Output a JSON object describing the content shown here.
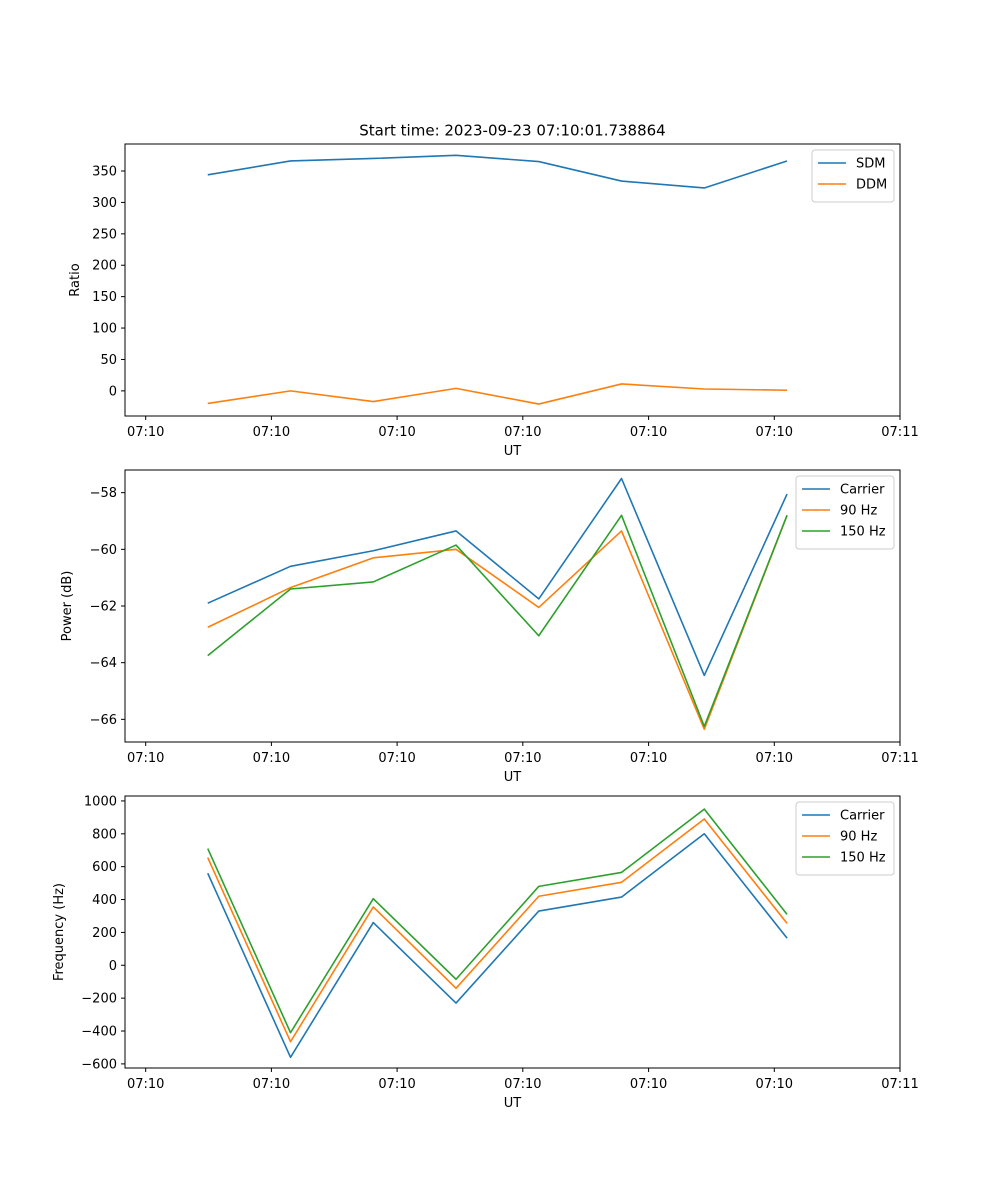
{
  "figure": {
    "title": "Start time: 2023-09-23 07:10:01.738864",
    "colors": {
      "blue": "#1f77b4",
      "orange": "#ff7f0e",
      "green": "#2ca02c"
    }
  },
  "chart_data": [
    {
      "type": "line",
      "title": "Start time: 2023-09-23 07:10:01.738864",
      "xlabel": "UT",
      "ylabel": "Ratio",
      "x": [
        1,
        2,
        3,
        4,
        5,
        6,
        7,
        8
      ],
      "x_ticks": [
        0.25,
        1.769,
        3.288,
        4.807,
        6.327,
        7.846,
        9.365
      ],
      "x_tick_labels": [
        "07:10",
        "07:10",
        "07:10",
        "07:10",
        "07:10",
        "07:10",
        "07:11"
      ],
      "xlim": [
        0.0,
        9.365
      ],
      "ylim": [
        -40,
        393
      ],
      "y_ticks": [
        0,
        50,
        100,
        150,
        200,
        250,
        300,
        350
      ],
      "legend": "top-right",
      "series": [
        {
          "name": "SDM",
          "color": "#1f77b4",
          "values": [
            344,
            366,
            370,
            375,
            365,
            334,
            323,
            366
          ]
        },
        {
          "name": "DDM",
          "color": "#ff7f0e",
          "values": [
            -20,
            0,
            -17,
            4,
            -21,
            11,
            3,
            1
          ]
        }
      ]
    },
    {
      "type": "line",
      "title": "",
      "xlabel": "UT",
      "ylabel": "Power (dB)",
      "x": [
        1,
        2,
        3,
        4,
        5,
        6,
        7,
        8
      ],
      "x_ticks": [
        0.25,
        1.769,
        3.288,
        4.807,
        6.327,
        7.846,
        9.365
      ],
      "x_tick_labels": [
        "07:10",
        "07:10",
        "07:10",
        "07:10",
        "07:10",
        "07:10",
        "07:11"
      ],
      "xlim": [
        0.0,
        9.365
      ],
      "ylim": [
        -66.8,
        -57.2
      ],
      "y_ticks": [
        -66,
        -64,
        -62,
        -60,
        -58
      ],
      "y_tick_labels": [
        "−66",
        "−64",
        "−62",
        "−60",
        "−58"
      ],
      "legend": "top-right",
      "series": [
        {
          "name": "Carrier",
          "color": "#1f77b4",
          "values": [
            -61.9,
            -60.6,
            -60.05,
            -59.35,
            -61.75,
            -57.5,
            -64.45,
            -58.05
          ]
        },
        {
          "name": "90 Hz",
          "color": "#ff7f0e",
          "values": [
            -62.75,
            -61.35,
            -60.3,
            -60.0,
            -62.05,
            -59.35,
            -66.35,
            -58.8
          ]
        },
        {
          "name": "150 Hz",
          "color": "#2ca02c",
          "values": [
            -63.75,
            -61.4,
            -61.15,
            -59.85,
            -63.05,
            -58.8,
            -66.25,
            -58.8
          ]
        }
      ]
    },
    {
      "type": "line",
      "title": "",
      "xlabel": "UT",
      "ylabel": "Frequency (Hz)",
      "x": [
        1,
        2,
        3,
        4,
        5,
        6,
        7,
        8
      ],
      "x_ticks": [
        0.25,
        1.769,
        3.288,
        4.807,
        6.327,
        7.846,
        9.365
      ],
      "x_tick_labels": [
        "07:10",
        "07:10",
        "07:10",
        "07:10",
        "07:10",
        "07:10",
        "07:11"
      ],
      "xlim": [
        0.0,
        9.365
      ],
      "ylim": [
        -625,
        1030
      ],
      "y_ticks": [
        -600,
        -400,
        -200,
        0,
        200,
        400,
        600,
        800,
        1000
      ],
      "y_tick_labels": [
        "−600",
        "−400",
        "−200",
        "0",
        "200",
        "400",
        "600",
        "800",
        "1000"
      ],
      "legend": "top-right",
      "series": [
        {
          "name": "Carrier",
          "color": "#1f77b4",
          "values": [
            560,
            -560,
            260,
            -230,
            330,
            415,
            800,
            165
          ]
        },
        {
          "name": "90 Hz",
          "color": "#ff7f0e",
          "values": [
            655,
            -465,
            355,
            -140,
            420,
            505,
            890,
            255
          ]
        },
        {
          "name": "150 Hz",
          "color": "#2ca02c",
          "values": [
            710,
            -410,
            405,
            -85,
            480,
            565,
            950,
            310
          ]
        }
      ]
    }
  ]
}
